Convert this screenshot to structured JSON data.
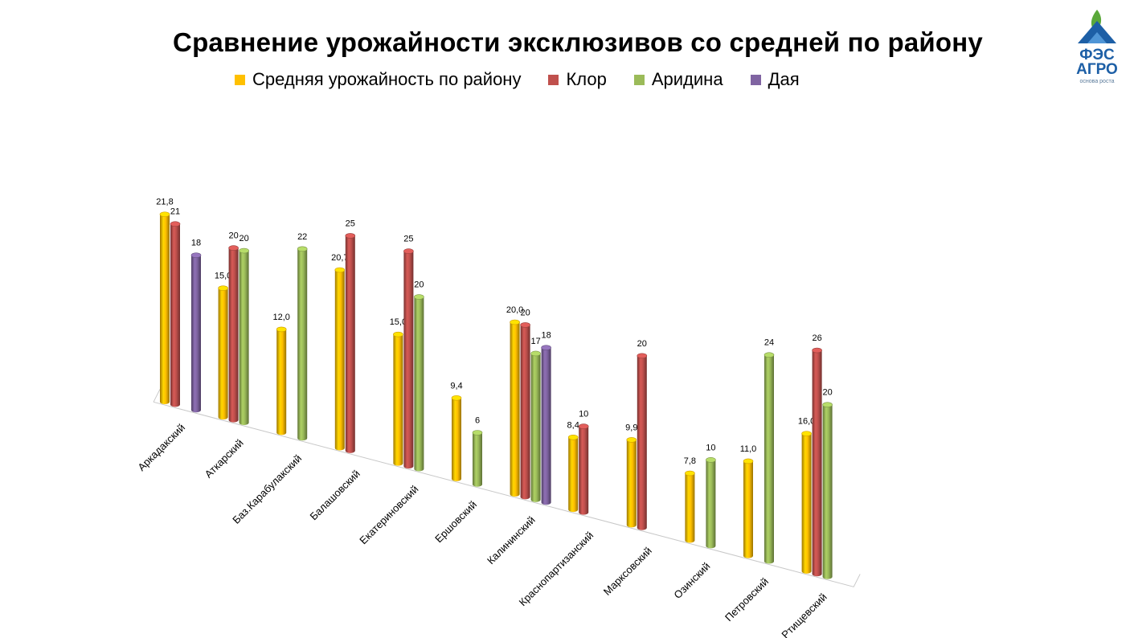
{
  "logo": {
    "line1": "ФЭС",
    "line2": "АГРО",
    "tagline": "основа роста",
    "colors": {
      "blue": "#1d5fa6",
      "green": "#5aa83a"
    }
  },
  "chart_data": {
    "type": "bar",
    "title": "Сравнение урожайности эксклюзивов со средней по району",
    "legend_position": "top",
    "categories": [
      "Аркадакский",
      "Аткарский",
      "Баз.Карабулакский",
      "Балашовский",
      "Екатериновский",
      "Ершовский",
      "Калининский",
      "Краснопартизанский",
      "Марксовский",
      "Озинский",
      "Петровский",
      "Ртищевский"
    ],
    "series": [
      {
        "name": "Средняя урожайность по району",
        "color": "#ffc000",
        "values": [
          21.8,
          15.0,
          12.0,
          20.7,
          15.0,
          9.4,
          20.0,
          8.4,
          9.9,
          7.8,
          11.0,
          16.0
        ],
        "labels": [
          "21,8",
          "15,0",
          "12,0",
          "20,7",
          "15,0",
          "9,4",
          "20,0",
          "8,4",
          "9,9",
          "7,8",
          "11,0",
          "16,0"
        ]
      },
      {
        "name": "Клор",
        "color": "#c0504d",
        "values": [
          21,
          20,
          null,
          25,
          25,
          null,
          20,
          10,
          20,
          null,
          null,
          26
        ],
        "labels": [
          "21",
          "20",
          null,
          "25",
          "25",
          null,
          "20",
          "10",
          "20",
          null,
          null,
          "26"
        ]
      },
      {
        "name": "Аридина",
        "color": "#9bbb59",
        "values": [
          null,
          20,
          22,
          null,
          20,
          6,
          17,
          null,
          null,
          10,
          24,
          20
        ],
        "labels": [
          null,
          "20",
          "22",
          null,
          "20",
          "6",
          "17",
          null,
          null,
          "10",
          "24",
          "20"
        ]
      },
      {
        "name": "Дая",
        "color": "#8064a2",
        "values": [
          18,
          null,
          null,
          null,
          null,
          null,
          18,
          null,
          null,
          null,
          null,
          null
        ],
        "labels": [
          "18",
          null,
          null,
          null,
          null,
          null,
          "18",
          null,
          null,
          null,
          null,
          null
        ]
      }
    ],
    "grid": false
  }
}
